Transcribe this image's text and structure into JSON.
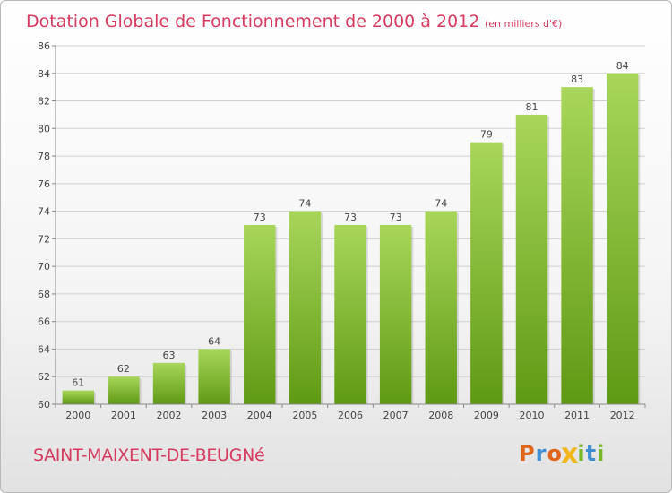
{
  "colors": {
    "title": "#d63a5e",
    "bar_light": "#a8d65a",
    "bar_dark": "#5f9a14",
    "grid": "#cfcfcf",
    "text": "#444444"
  },
  "chart_data": {
    "type": "bar",
    "title": "Dotation Globale de Fonctionnement de 2000 à 2012",
    "subtitle": "(en milliers d'€)",
    "xlabel": "",
    "ylabel": "",
    "categories": [
      "2000",
      "2001",
      "2002",
      "2003",
      "2004",
      "2005",
      "2006",
      "2007",
      "2008",
      "2009",
      "2010",
      "2011",
      "2012"
    ],
    "values": [
      61,
      62,
      63,
      64,
      73,
      74,
      73,
      73,
      74,
      79,
      81,
      83,
      84
    ],
    "ylim": [
      60,
      86
    ],
    "yticks": [
      60,
      62,
      64,
      66,
      68,
      70,
      72,
      74,
      76,
      78,
      80,
      82,
      84,
      86
    ],
    "grid": true,
    "legend": "none"
  },
  "footer": {
    "commune": "SAINT-MAIXENT-DE-BEUGNé",
    "logo_letters": [
      {
        "char": "P",
        "color": "#e0651d"
      },
      {
        "char": "r",
        "color": "#3f8fd2"
      },
      {
        "char": "o",
        "color": "#e0651d"
      },
      {
        "char": "x",
        "color": "#f2b71a"
      },
      {
        "char": "i",
        "color": "#79b82a"
      },
      {
        "char": "t",
        "color": "#3f8fd2"
      },
      {
        "char": "i",
        "color": "#79b82a"
      }
    ]
  }
}
